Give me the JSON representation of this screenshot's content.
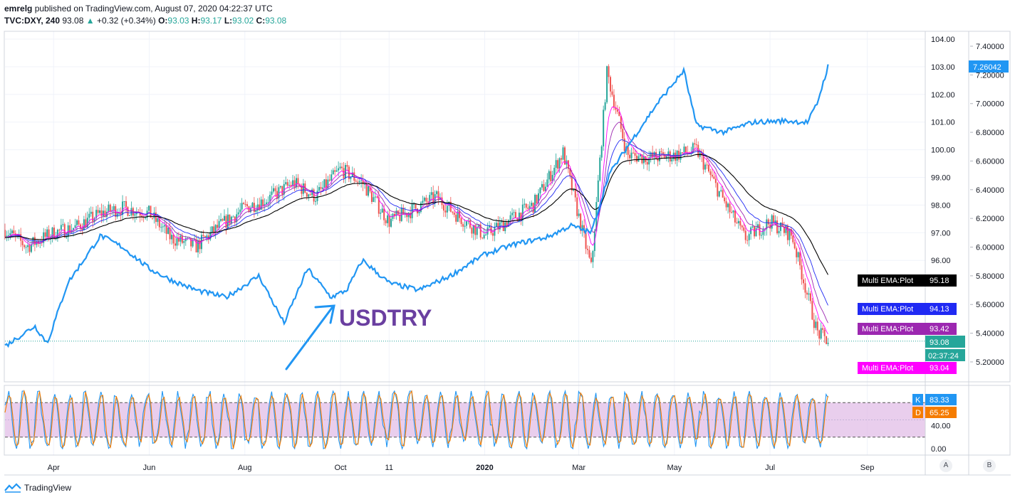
{
  "header": {
    "publisher": "emrelg",
    "published_text": "published on TradingView.com, August 07, 2020 04:22:37 UTC",
    "symbol": "TVC:DXY, 240",
    "last": "93.08",
    "change": "+0.32 (+0.34%)",
    "o_label": "O:",
    "o": "93.03",
    "h_label": "H:",
    "h": "93.17",
    "l_label": "L:",
    "l": "93.02",
    "c_label": "C:",
    "c": "93.08"
  },
  "footer": {
    "brand": "TradingView"
  },
  "scale_buttons": {
    "a": "A",
    "b": "B"
  },
  "colors": {
    "candle_up": "#26a69a",
    "candle_down": "#ef5350",
    "usdtry": "#2196f3",
    "ema_fast": "#ff00ff",
    "ema_mid": "#9c27b0",
    "ema_slow": "#2029f3",
    "ema_long": "#000000",
    "stoch_k": "#2196f3",
    "stoch_d": "#f57c00",
    "stoch_band": "#e1bee7"
  },
  "chart_data": [
    {
      "type": "line",
      "description_free": true,
      "x_ticks": [
        "Apr",
        "Jun",
        "Aug",
        "Oct",
        "11",
        "2020",
        "Mar",
        "May",
        "Jul",
        "Sep"
      ],
      "left_axis_ticks": [
        "104.00",
        "103.00",
        "102.00",
        "101.00",
        "100.00",
        "99.00",
        "98.00",
        "97.00",
        "96.00"
      ],
      "right_axis_ticks": [
        "7.40000",
        "7.20000",
        "7.00000",
        "6.80000",
        "6.60000",
        "6.40000",
        "6.20000",
        "6.00000",
        "5.80000",
        "5.60000",
        "5.40000",
        "5.20000"
      ],
      "dxy_range": [
        93.0,
        104.0
      ],
      "usdtry_range": [
        5.2,
        7.4
      ],
      "series": [
        {
          "name": "TVC:DXY",
          "kind": "candles",
          "x": [
            "2019-03-01",
            "2019-03-15",
            "2019-04-01",
            "2019-04-15",
            "2019-05-01",
            "2019-05-15",
            "2019-06-01",
            "2019-06-15",
            "2019-07-01",
            "2019-07-15",
            "2019-08-01",
            "2019-08-15",
            "2019-09-01",
            "2019-09-15",
            "2019-10-01",
            "2019-10-15",
            "2019-11-01",
            "2019-11-15",
            "2019-12-01",
            "2019-12-15",
            "2020-01-01",
            "2020-01-15",
            "2020-02-01",
            "2020-02-20",
            "2020-03-09",
            "2020-03-19",
            "2020-04-01",
            "2020-04-15",
            "2020-05-01",
            "2020-05-15",
            "2020-06-01",
            "2020-06-15",
            "2020-07-01",
            "2020-07-15",
            "2020-07-31",
            "2020-08-07"
          ],
          "values": [
            97.1,
            96.5,
            97.0,
            97.2,
            97.7,
            97.9,
            97.7,
            96.8,
            96.5,
            97.2,
            97.9,
            98.2,
            98.8,
            98.3,
            99.3,
            98.8,
            97.4,
            97.8,
            98.3,
            97.6,
            96.9,
            97.4,
            98.0,
            99.9,
            95.7,
            102.8,
            99.8,
            99.7,
            99.8,
            100.0,
            98.2,
            96.8,
            97.4,
            96.9,
            93.4,
            93.08
          ]
        },
        {
          "name": "USDTRY",
          "kind": "line",
          "x": [
            "2019-03-01",
            "2019-03-20",
            "2019-03-28",
            "2019-04-10",
            "2019-05-01",
            "2019-05-15",
            "2019-06-01",
            "2019-06-15",
            "2019-07-01",
            "2019-07-20",
            "2019-08-10",
            "2019-08-26",
            "2019-09-10",
            "2019-09-25",
            "2019-10-05",
            "2019-10-15",
            "2019-11-01",
            "2019-11-20",
            "2019-12-10",
            "2020-01-01",
            "2020-01-20",
            "2020-02-10",
            "2020-02-25",
            "2020-03-09",
            "2020-03-20",
            "2020-04-01",
            "2020-04-20",
            "2020-05-07",
            "2020-05-15",
            "2020-06-01",
            "2020-06-20",
            "2020-07-10",
            "2020-07-25",
            "2020-07-31",
            "2020-08-07"
          ],
          "values": [
            5.31,
            5.45,
            5.33,
            5.75,
            6.08,
            6.0,
            5.85,
            5.77,
            5.7,
            5.65,
            5.8,
            5.47,
            5.85,
            5.65,
            5.7,
            5.91,
            5.75,
            5.7,
            5.8,
            5.95,
            6.02,
            6.07,
            6.15,
            6.1,
            6.5,
            6.7,
            7.0,
            7.23,
            6.85,
            6.8,
            6.87,
            6.88,
            6.87,
            7.0,
            7.26
          ]
        },
        {
          "name": "Multi EMA:Plot",
          "last": "95.18",
          "color_key": "ema_long"
        },
        {
          "name": "Multi EMA:Plot",
          "last": "94.13",
          "color_key": "ema_slow"
        },
        {
          "name": "Multi EMA:Plot",
          "last": "93.42",
          "color_key": "ema_mid"
        },
        {
          "name": "Multi EMA:Plot",
          "last": "93.04",
          "color_key": "ema_fast"
        }
      ],
      "price_badges": {
        "dxy_last": "93.08",
        "countdown": "02:37:24",
        "usdtry_last": "7.26042"
      },
      "annotation": "USDTRY"
    },
    {
      "type": "line",
      "name": "Stochastic",
      "y_ticks": [
        "40.00",
        "0.00"
      ],
      "band": [
        20,
        80
      ],
      "ylim": [
        0,
        100
      ],
      "series": [
        {
          "name": "K",
          "last": "83.33",
          "color_key": "stoch_k"
        },
        {
          "name": "D",
          "last": "65.25",
          "color_key": "stoch_d"
        }
      ]
    }
  ]
}
